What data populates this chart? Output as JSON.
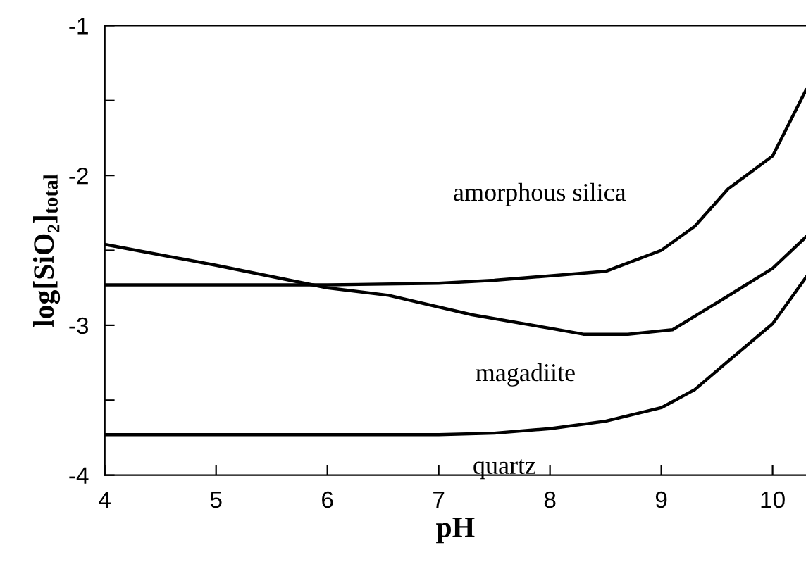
{
  "chart_data": {
    "type": "line",
    "xlabel": "pH",
    "ylabel": "log[SiO₂]$_{total}$",
    "xlim": [
      4,
      10.3
    ],
    "ylim": [
      -4,
      -1
    ],
    "xticks": [
      4,
      5,
      6,
      7,
      8,
      9,
      10
    ],
    "yticks": [
      -4,
      {
        "value": -3.5,
        "label": null
      },
      -3,
      {
        "value": -2.5,
        "label": null
      },
      -2,
      {
        "value": -1.5,
        "label": null
      },
      -1
    ],
    "grid": false,
    "legend": false,
    "marker": "none",
    "line_style": "solid",
    "series": [
      {
        "name": "amorphous silica",
        "color": "#000000",
        "x": [
          4,
          6,
          7,
          7.5,
          8,
          8.5,
          9,
          9.3,
          9.6,
          10,
          10.3
        ],
        "values": [
          -2.73,
          -2.73,
          -2.72,
          -2.7,
          -2.67,
          -2.64,
          -2.5,
          -2.34,
          -2.09,
          -1.87,
          -1.43
        ]
      },
      {
        "name": "magadiite",
        "color": "#000000",
        "x": [
          4,
          5,
          6,
          6.55,
          7.3,
          8,
          8.3,
          8.7,
          9.1,
          9.5,
          10,
          10.3
        ],
        "values": [
          -2.46,
          -2.6,
          -2.75,
          -2.8,
          -2.93,
          -3.02,
          -3.06,
          -3.06,
          -3.03,
          -2.85,
          -2.62,
          -2.41
        ]
      },
      {
        "name": "quartz",
        "color": "#000000",
        "x": [
          4,
          6,
          7,
          7.5,
          8,
          8.5,
          9,
          9.3,
          9.6,
          10,
          10.3
        ],
        "values": [
          -3.73,
          -3.73,
          -3.73,
          -3.72,
          -3.69,
          -3.64,
          -3.55,
          -3.43,
          -3.24,
          -2.99,
          -2.68
        ]
      }
    ]
  }
}
